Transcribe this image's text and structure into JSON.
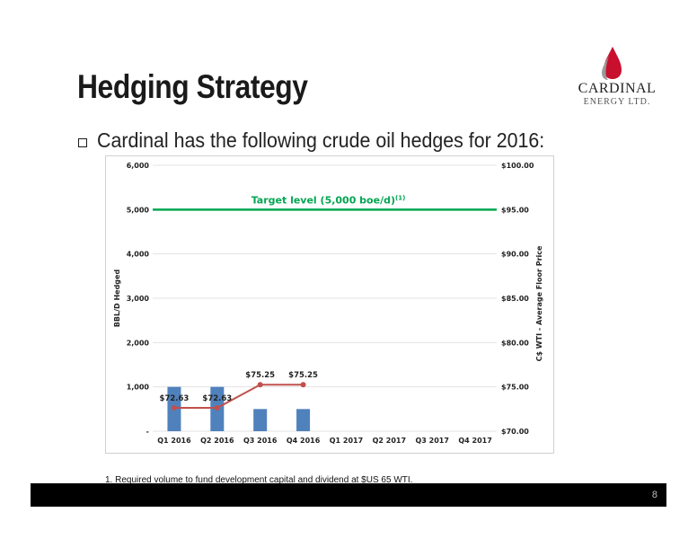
{
  "slide": {
    "title": "Hedging Strategy",
    "bullet": "Cardinal has the following crude oil hedges for 2016:",
    "footnote": "1. Required volume to fund development capital and dividend at $US 65 WTI.",
    "page_number": "8"
  },
  "logo": {
    "word": "CARDINAL",
    "sub": "ENERGY LTD.",
    "icon": "flame-drop-icon"
  },
  "colors": {
    "bars": "#4f81bd",
    "price_line": "#c0504d",
    "target_line": "#00a651",
    "footer": "#000000"
  },
  "chart_data": {
    "type": "bar",
    "categories": [
      "Q1 2016",
      "Q2 2016",
      "Q3 2016",
      "Q4 2016",
      "Q1 2017",
      "Q2 2017",
      "Q3 2017",
      "Q4 2017"
    ],
    "series": [
      {
        "values": [
          1000,
          1000,
          500,
          500,
          null,
          null,
          null,
          null
        ]
      },
      {
        "values": [
          72.63,
          72.63,
          75.25,
          75.25,
          null,
          null,
          null,
          null
        ]
      }
    ],
    "price_labels": [
      "$72.63",
      "$72.63",
      "$75.25",
      "$75.25"
    ],
    "target": {
      "value": 5000,
      "label_main": "Target level (5,000 boe/d)",
      "label_sup": "(1)"
    },
    "ylabel": "BBL/D Hedged",
    "ylabel_right": "C$ WTI - Average Floor Price",
    "ylim": [
      0,
      6000
    ],
    "ylim_right": [
      70,
      100
    ],
    "left_ticks": [
      "-",
      "1,000",
      "2,000",
      "3,000",
      "4,000",
      "5,000",
      "6,000"
    ],
    "right_ticks": [
      "$70.00",
      "$75.00",
      "$80.00",
      "$85.00",
      "$90.00",
      "$95.00",
      "$100.00"
    ],
    "grid": true
  }
}
